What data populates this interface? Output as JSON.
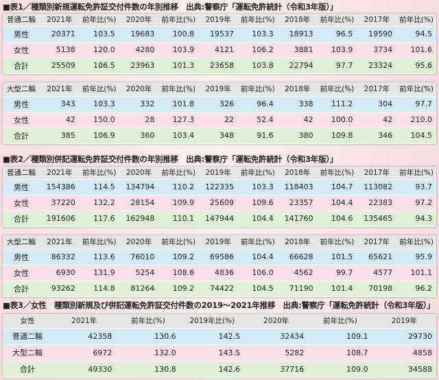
{
  "tables": [
    {
      "title": "■表1／種類別新規運転免許証交付件数の年別推移　出典:警察庁「運転免許統計（令和3年版）」",
      "blocks": [
        {
          "header": [
            "普通二輪",
            "2021年",
            "前年比(%)",
            "2020年",
            "前年比(%)",
            "2019年",
            "前年比(%)",
            "2018年",
            "前年比(%)",
            "2017年",
            "前年比(%)"
          ],
          "rows": [
            [
              "男性",
              "20371",
              "103.5",
              "19683",
              "100.8",
              "19537",
              "103.3",
              "18913",
              "96.5",
              "19590",
              "94.5"
            ],
            [
              "女性",
              "5138",
              "120.0",
              "4280",
              "103.9",
              "4121",
              "106.2",
              "3881",
              "103.9",
              "3734",
              "101.6"
            ],
            [
              "合計",
              "25509",
              "106.5",
              "23963",
              "101.3",
              "23658",
              "103.8",
              "22794",
              "97.7",
              "23324",
              "95.6"
            ]
          ]
        },
        {
          "header": [
            "大型二輪",
            "2021年",
            "前年比(%)",
            "2020年",
            "前年比(%)",
            "2019年",
            "前年比(%)",
            "2018年",
            "前年比(%)",
            "2017年",
            "前年比(%)"
          ],
          "rows": [
            [
              "男性",
              "343",
              "103.3",
              "332",
              "101.8",
              "326",
              "96.4",
              "338",
              "111.2",
              "304",
              "97.7"
            ],
            [
              "女性",
              "42",
              "150.0",
              "28",
              "127.3",
              "22",
              "52.4",
              "42",
              "100.0",
              "42",
              "210.0"
            ],
            [
              "合計",
              "385",
              "106.9",
              "360",
              "103.4",
              "348",
              "91.6",
              "380",
              "109.8",
              "346",
              "104.5"
            ]
          ]
        }
      ]
    },
    {
      "title": "■表2／種類別併記運転免許証交付件数の年別推移　出典:警察庁「運転免許統計（令和3年版）」",
      "blocks": [
        {
          "header": [
            "普通二輪",
            "2021年",
            "前年比(%)",
            "2020年",
            "前年比(%)",
            "2019年",
            "前年比(%)",
            "2018年",
            "前年比(%)",
            "2017年",
            "前年比(%)"
          ],
          "rows": [
            [
              "男性",
              "154386",
              "114.5",
              "134794",
              "110.2",
              "122335",
              "103.3",
              "118403",
              "104.7",
              "113082",
              "93.7"
            ],
            [
              "女性",
              "37220",
              "132.2",
              "28154",
              "109.9",
              "25609",
              "109.6",
              "23357",
              "104.4",
              "22383",
              "97.2"
            ],
            [
              "合計",
              "191606",
              "117.6",
              "162948",
              "110.1",
              "147944",
              "104.4",
              "141760",
              "104.6",
              "135465",
              "94.3"
            ]
          ]
        },
        {
          "header": [
            "大型二輪",
            "2021年",
            "前年比(%)",
            "2020年",
            "前年比(%)",
            "2019年",
            "前年比(%)",
            "2018年",
            "前年比(%)",
            "2017年",
            "前年比(%)"
          ],
          "rows": [
            [
              "男性",
              "86332",
              "113.6",
              "76010",
              "109.2",
              "69586",
              "104.4",
              "66628",
              "101.5",
              "65621",
              "95.9"
            ],
            [
              "女性",
              "6930",
              "131.9",
              "5254",
              "108.6",
              "4836",
              "106.0",
              "4562",
              "99.7",
              "4577",
              "101.1"
            ],
            [
              "合計",
              "93262",
              "114.8",
              "81264",
              "109.2",
              "74422",
              "104.5",
              "71190",
              "101.4",
              "70198",
              "96.2"
            ]
          ]
        }
      ]
    },
    {
      "title": "■表3／女性　種類別新規及び併記運転免許証交付件数の2019～2021年推移　出典:警察庁「運転免許統計（令和3年版）」",
      "blocks": [
        {
          "header": [
            "女性",
            "2021年",
            "前年比(%)",
            "2019年比(%)",
            "2020年",
            "前年比(%)",
            "2019年"
          ],
          "rows": [
            [
              "普通二輪",
              "42358",
              "130.6",
              "142.5",
              "32434",
              "109.1",
              "29730"
            ],
            [
              "大型二輪",
              "6972",
              "132.0",
              "143.5",
              "5282",
              "108.7",
              "4858"
            ],
            [
              "合計",
              "49330",
              "130.8",
              "142.6",
              "37716",
              "109.0",
              "34588"
            ]
          ]
        }
      ]
    }
  ]
}
